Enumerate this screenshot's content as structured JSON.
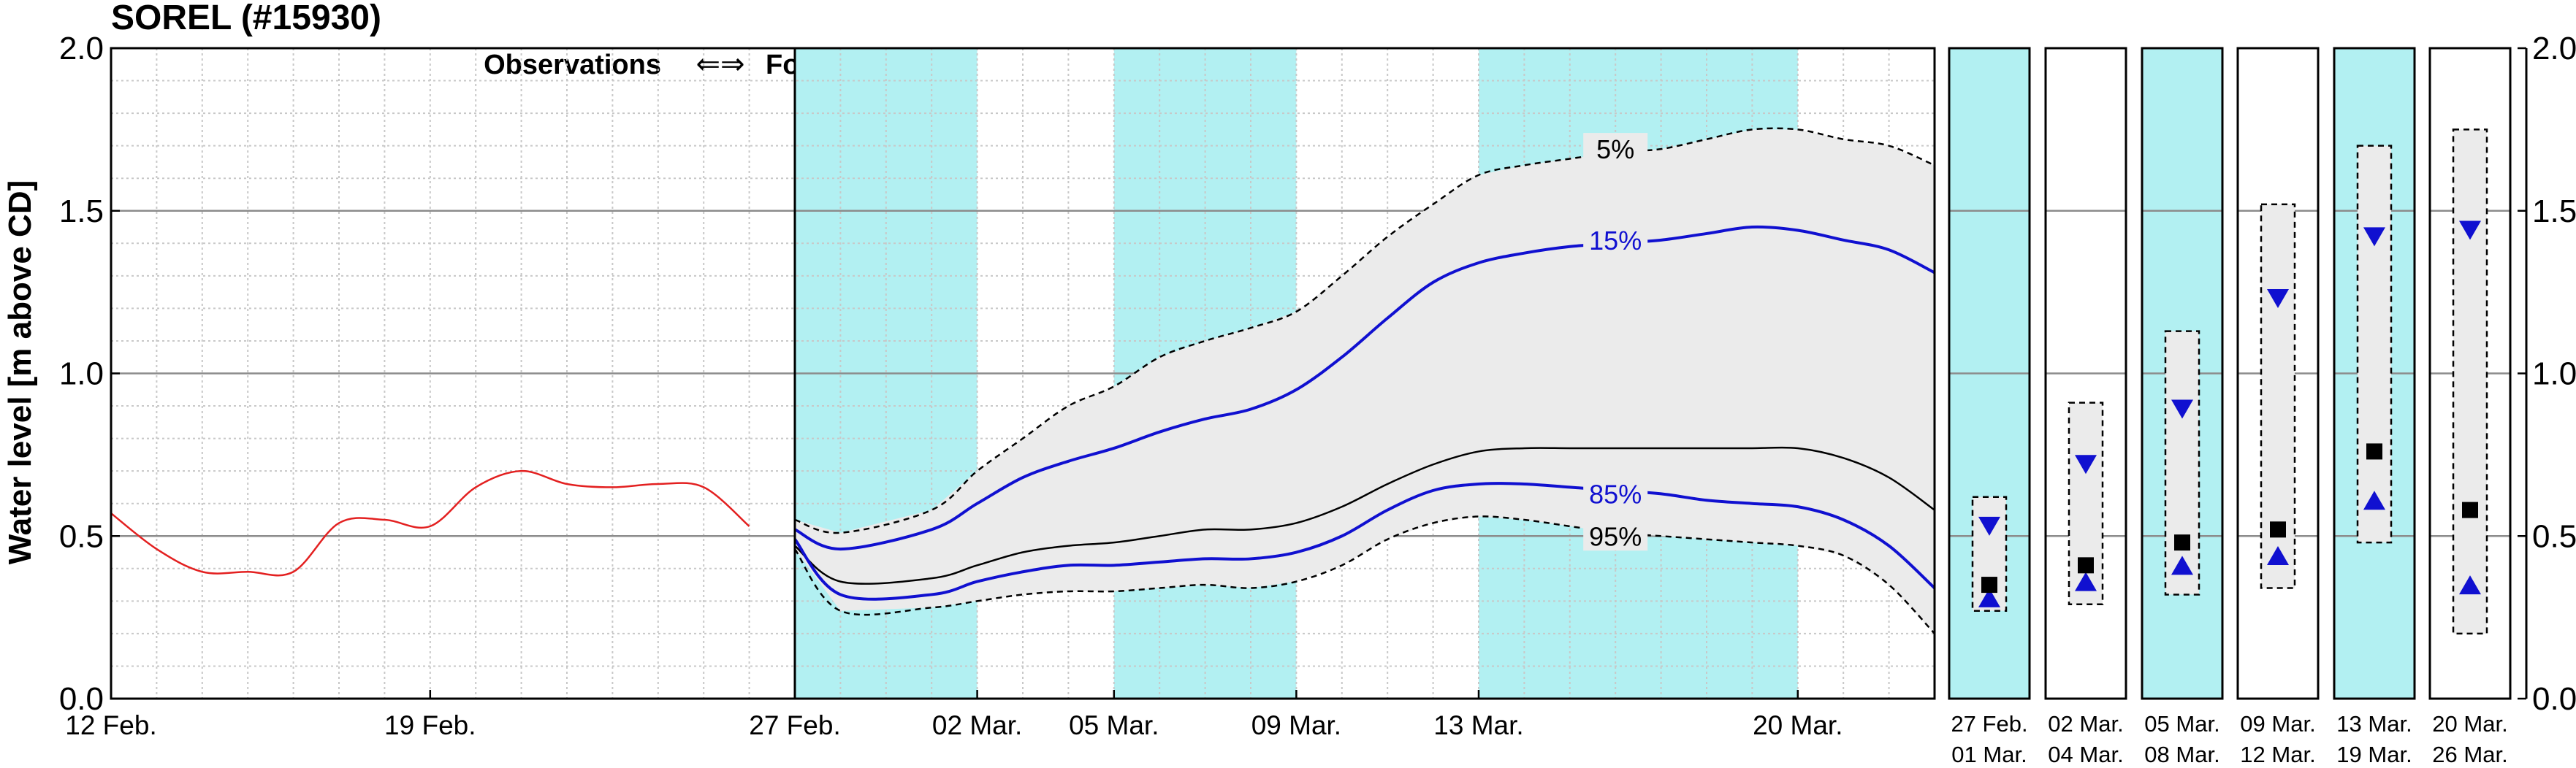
{
  "title": "SOREL (#15930)",
  "ylabel": "Water level [m above CD]",
  "annotation_observations": "Observations",
  "annotation_arrows": "⇐⇒",
  "annotation_forecasts": "Forecasts",
  "colors": {
    "observed": "#e32020",
    "percentile_blue": "#1010d0",
    "median": "#000000",
    "band_fill": "#ebebeb",
    "weekend_shade": "#b2f0f2"
  },
  "chart_data": [
    {
      "type": "line",
      "title": "",
      "xlabel": "",
      "ylabel": "Water level [m above CD]",
      "ylim": [
        0.0,
        2.0
      ],
      "yticks": [
        "0.0",
        "0.5",
        "1.0",
        "1.5",
        "2.0"
      ],
      "xlim_days_note": "Feb 12 to Mar 23",
      "xticks": [
        "12 Feb.",
        "19 Feb.",
        "27 Feb.",
        "02 Mar.",
        "05 Mar.",
        "09 Mar.",
        "13 Mar.",
        "20 Mar."
      ],
      "grid": true,
      "observation_forecast_split": "27 Feb.",
      "shaded_periods": [
        [
          "27 Feb.",
          "02 Mar."
        ],
        [
          "05 Mar.",
          "09 Mar."
        ],
        [
          "13 Mar.",
          "20 Mar."
        ]
      ],
      "series": [
        {
          "name": "Observations",
          "x": [
            "12 Feb.",
            "13 Feb.",
            "14 Feb.",
            "15 Feb.",
            "16 Feb.",
            "17 Feb.",
            "18 Feb.",
            "19 Feb.",
            "20 Feb.",
            "21 Feb.",
            "22 Feb.",
            "23 Feb.",
            "24 Feb.",
            "25 Feb.",
            "26 Feb."
          ],
          "values": [
            0.57,
            0.46,
            0.39,
            0.39,
            0.39,
            0.54,
            0.55,
            0.53,
            0.65,
            0.7,
            0.66,
            0.65,
            0.66,
            0.65,
            0.53
          ]
        },
        {
          "name": "5%",
          "x": [
            "27 Feb.",
            "28 Feb.",
            "01 Mar.",
            "02 Mar.",
            "03 Mar.",
            "04 Mar.",
            "05 Mar.",
            "06 Mar.",
            "07 Mar.",
            "08 Mar.",
            "09 Mar.",
            "10 Mar.",
            "11 Mar.",
            "12 Mar.",
            "13 Mar.",
            "14 Mar.",
            "15 Mar.",
            "16 Mar.",
            "17 Mar.",
            "18 Mar.",
            "19 Mar.",
            "20 Mar.",
            "21 Mar.",
            "22 Mar.",
            "23 Mar."
          ],
          "values": [
            0.55,
            0.51,
            0.58,
            0.7,
            0.8,
            0.9,
            0.96,
            1.05,
            1.1,
            1.14,
            1.19,
            1.3,
            1.42,
            1.52,
            1.61,
            1.64,
            1.66,
            1.68,
            1.69,
            1.72,
            1.75,
            1.75,
            1.72,
            1.7,
            1.64
          ]
        },
        {
          "name": "15%",
          "x": [
            "27 Feb.",
            "28 Feb.",
            "01 Mar.",
            "02 Mar.",
            "03 Mar.",
            "04 Mar.",
            "05 Mar.",
            "06 Mar.",
            "07 Mar.",
            "08 Mar.",
            "09 Mar.",
            "10 Mar.",
            "11 Mar.",
            "12 Mar.",
            "13 Mar.",
            "14 Mar.",
            "15 Mar.",
            "16 Mar.",
            "17 Mar.",
            "18 Mar.",
            "19 Mar.",
            "20 Mar.",
            "21 Mar.",
            "22 Mar.",
            "23 Mar."
          ],
          "values": [
            0.52,
            0.46,
            0.52,
            0.6,
            0.68,
            0.73,
            0.77,
            0.82,
            0.86,
            0.89,
            0.95,
            1.05,
            1.17,
            1.28,
            1.34,
            1.37,
            1.39,
            1.4,
            1.41,
            1.43,
            1.45,
            1.44,
            1.41,
            1.38,
            1.31
          ]
        },
        {
          "name": "median",
          "x": [
            "27 Feb.",
            "28 Feb.",
            "01 Mar.",
            "02 Mar.",
            "03 Mar.",
            "04 Mar.",
            "05 Mar.",
            "06 Mar.",
            "07 Mar.",
            "08 Mar.",
            "09 Mar.",
            "10 Mar.",
            "11 Mar.",
            "12 Mar.",
            "13 Mar.",
            "14 Mar.",
            "15 Mar.",
            "16 Mar.",
            "17 Mar.",
            "18 Mar.",
            "19 Mar.",
            "20 Mar.",
            "21 Mar.",
            "22 Mar.",
            "23 Mar."
          ],
          "values": [
            0.47,
            0.36,
            0.37,
            0.41,
            0.45,
            0.47,
            0.48,
            0.5,
            0.52,
            0.52,
            0.54,
            0.59,
            0.66,
            0.72,
            0.76,
            0.77,
            0.77,
            0.77,
            0.77,
            0.77,
            0.77,
            0.77,
            0.74,
            0.68,
            0.58
          ]
        },
        {
          "name": "85%",
          "x": [
            "27 Feb.",
            "28 Feb.",
            "01 Mar.",
            "02 Mar.",
            "03 Mar.",
            "04 Mar.",
            "05 Mar.",
            "06 Mar.",
            "07 Mar.",
            "08 Mar.",
            "09 Mar.",
            "10 Mar.",
            "11 Mar.",
            "12 Mar.",
            "13 Mar.",
            "14 Mar.",
            "15 Mar.",
            "16 Mar.",
            "17 Mar.",
            "18 Mar.",
            "19 Mar.",
            "20 Mar.",
            "21 Mar.",
            "22 Mar.",
            "23 Mar."
          ],
          "values": [
            0.49,
            0.32,
            0.32,
            0.36,
            0.39,
            0.41,
            0.41,
            0.42,
            0.43,
            0.43,
            0.45,
            0.5,
            0.58,
            0.64,
            0.66,
            0.66,
            0.65,
            0.64,
            0.63,
            0.61,
            0.6,
            0.59,
            0.55,
            0.47,
            0.34
          ]
        },
        {
          "name": "95%",
          "x": [
            "27 Feb.",
            "28 Feb.",
            "01 Mar.",
            "02 Mar.",
            "03 Mar.",
            "04 Mar.",
            "05 Mar.",
            "06 Mar.",
            "07 Mar.",
            "08 Mar.",
            "09 Mar.",
            "10 Mar.",
            "11 Mar.",
            "12 Mar.",
            "13 Mar.",
            "14 Mar.",
            "15 Mar.",
            "16 Mar.",
            "17 Mar.",
            "18 Mar.",
            "19 Mar.",
            "20 Mar.",
            "21 Mar.",
            "22 Mar.",
            "23 Mar."
          ],
          "values": [
            0.46,
            0.27,
            0.28,
            0.3,
            0.32,
            0.33,
            0.33,
            0.34,
            0.35,
            0.34,
            0.36,
            0.41,
            0.49,
            0.54,
            0.56,
            0.55,
            0.53,
            0.51,
            0.5,
            0.49,
            0.48,
            0.47,
            0.44,
            0.35,
            0.2
          ]
        }
      ],
      "line_labels": [
        {
          "series": "5%",
          "text": "5%",
          "x": "16 Mar.",
          "y": 1.69
        },
        {
          "series": "15%",
          "text": "15%",
          "x": "16 Mar.",
          "y": 1.41
        },
        {
          "series": "85%",
          "text": "85%",
          "x": "16 Mar.",
          "y": 0.63
        },
        {
          "series": "95%",
          "text": "95%",
          "x": "16 Mar.",
          "y": 0.5
        }
      ]
    },
    {
      "type": "box",
      "title": "",
      "ylim": [
        0.0,
        2.0
      ],
      "yticks": [
        "0.0",
        "0.5",
        "1.0",
        "1.5",
        "2.0"
      ],
      "periods": [
        {
          "label_top": "27  Feb.",
          "label_bottom": "01  Mar.",
          "shaded": true,
          "box_low": 0.27,
          "box_high": 0.62,
          "q15": 0.53,
          "q85": 0.31,
          "median": 0.35
        },
        {
          "label_top": "02  Mar.",
          "label_bottom": "04  Mar.",
          "shaded": false,
          "box_low": 0.29,
          "box_high": 0.91,
          "q15": 0.72,
          "q85": 0.36,
          "median": 0.41
        },
        {
          "label_top": "05  Mar.",
          "label_bottom": "08  Mar.",
          "shaded": true,
          "box_low": 0.32,
          "box_high": 1.13,
          "q15": 0.89,
          "q85": 0.41,
          "median": 0.48
        },
        {
          "label_top": "09  Mar.",
          "label_bottom": "12  Mar.",
          "shaded": false,
          "box_low": 0.34,
          "box_high": 1.52,
          "q15": 1.23,
          "q85": 0.44,
          "median": 0.52
        },
        {
          "label_top": "13  Mar.",
          "label_bottom": "19  Mar.",
          "shaded": true,
          "box_low": 0.48,
          "box_high": 1.7,
          "q15": 1.42,
          "q85": 0.61,
          "median": 0.76
        },
        {
          "label_top": "20  Mar.",
          "label_bottom": "26  Mar.",
          "shaded": false,
          "box_low": 0.2,
          "box_high": 1.75,
          "q15": 1.44,
          "q85": 0.35,
          "median": 0.58
        }
      ]
    }
  ]
}
